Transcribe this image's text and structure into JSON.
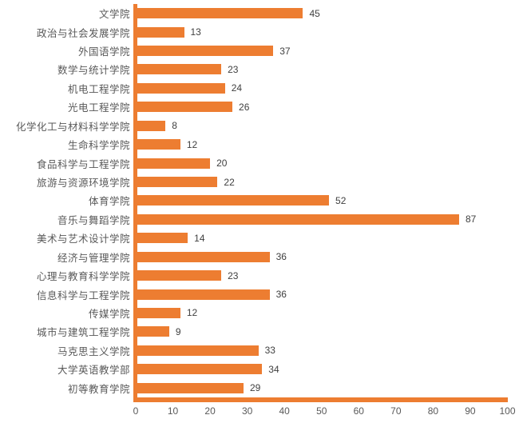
{
  "chart_data": {
    "type": "bar",
    "orientation": "horizontal",
    "title": "",
    "xlabel": "",
    "ylabel": "",
    "categories": [
      "文学院",
      "政治与社会发展学院",
      "外国语学院",
      "数学与统计学院",
      "机电工程学院",
      "光电工程学院",
      "化学化工与材料科学学院",
      "生命科学学院",
      "食品科学与工程学院",
      "旅游与资源环境学院",
      "体育学院",
      "音乐与舞蹈学院",
      "美术与艺术设计学院",
      "经济与管理学院",
      "心理与教育科学学院",
      "信息科学与工程学院",
      "传媒学院",
      "城市与建筑工程学院",
      "马克思主义学院",
      "大学英语教学部",
      "初等教育学院"
    ],
    "values": [
      45,
      13,
      37,
      23,
      24,
      26,
      8,
      12,
      20,
      22,
      52,
      87,
      14,
      36,
      23,
      36,
      12,
      9,
      33,
      34,
      29
    ],
    "value_labels_shown": true,
    "xlim": [
      0,
      100
    ],
    "x_ticks": [
      0,
      10,
      20,
      30,
      40,
      50,
      60,
      70,
      80,
      90,
      100
    ],
    "grid": "off",
    "legend": "none",
    "colors": {
      "bar": "#ED7D31",
      "axis_line": "#ED7D31",
      "category_label": "#595959",
      "value_label": "#404040",
      "tick_label": "#595959",
      "background": "#FFFFFF"
    }
  }
}
